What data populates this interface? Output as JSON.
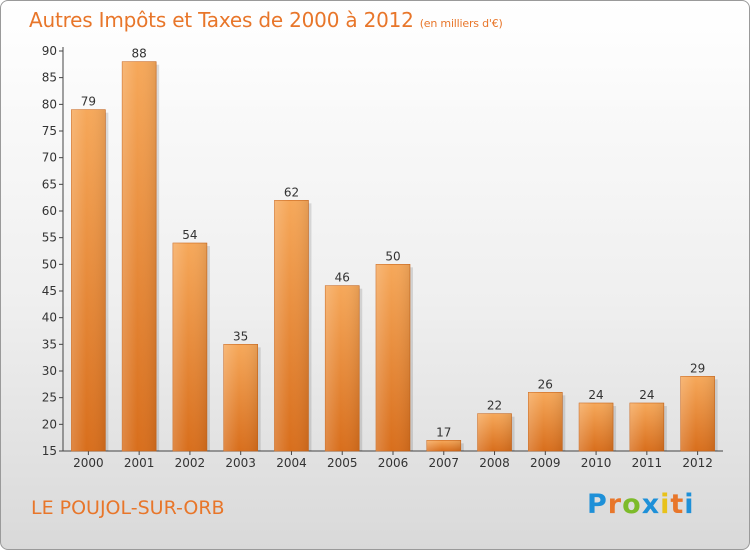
{
  "header": {
    "title": "Autres Impôts et Taxes de 2000 à 2012",
    "subtitle": "(en milliers d'€)"
  },
  "footer": {
    "location": "LE POUJOL-SUR-ORB",
    "brand": "Proxiti",
    "brand_colors": [
      "#1e90d8",
      "#e8762a",
      "#7dbb2a",
      "#1e90d8",
      "#e8c21a",
      "#e8762a",
      "#1e90d8"
    ]
  },
  "colors": {
    "title": "#e8762a",
    "bar_top": "#f6a85a",
    "bar_bottom": "#d86e1c",
    "axis": "#444444",
    "tick_text": "#333333"
  },
  "chart_data": {
    "type": "bar",
    "title": "Autres Impôts et Taxes de 2000 à 2012",
    "subtitle": "(en milliers d'€)",
    "categories": [
      "2000",
      "2001",
      "2002",
      "2003",
      "2004",
      "2005",
      "2006",
      "2007",
      "2008",
      "2009",
      "2010",
      "2011",
      "2012"
    ],
    "values": [
      79,
      88,
      54,
      35,
      62,
      46,
      50,
      17,
      22,
      26,
      24,
      24,
      29
    ],
    "ylim": [
      15,
      90
    ],
    "yticks": [
      15,
      20,
      25,
      30,
      35,
      40,
      45,
      50,
      55,
      60,
      65,
      70,
      75,
      80,
      85,
      90
    ],
    "xlabel": "",
    "ylabel": "",
    "grid": false,
    "data_labels": true
  }
}
